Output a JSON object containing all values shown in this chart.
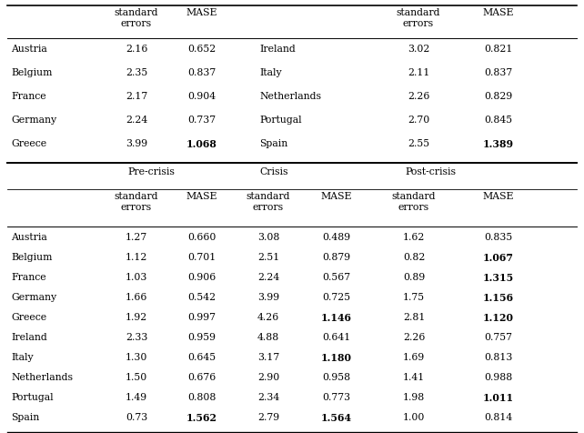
{
  "top_section": {
    "left": [
      {
        "country": "Austria",
        "se": "2.16",
        "mase": "0.652",
        "mase_bold": false
      },
      {
        "country": "Belgium",
        "se": "2.35",
        "mase": "0.837",
        "mase_bold": false
      },
      {
        "country": "France",
        "se": "2.17",
        "mase": "0.904",
        "mase_bold": false
      },
      {
        "country": "Germany",
        "se": "2.24",
        "mase": "0.737",
        "mase_bold": false
      },
      {
        "country": "Greece",
        "se": "3.99",
        "mase": "1.068",
        "mase_bold": true
      }
    ],
    "right": [
      {
        "country": "Ireland",
        "se": "3.02",
        "mase": "0.821",
        "mase_bold": false
      },
      {
        "country": "Italy",
        "se": "2.11",
        "mase": "0.837",
        "mase_bold": false
      },
      {
        "country": "Netherlands",
        "se": "2.26",
        "mase": "0.829",
        "mase_bold": false
      },
      {
        "country": "Portugal",
        "se": "2.70",
        "mase": "0.845",
        "mase_bold": false
      },
      {
        "country": "Spain",
        "se": "2.55",
        "mase": "1.389",
        "mase_bold": true
      }
    ]
  },
  "bottom_section": {
    "rows": [
      {
        "country": "Austria",
        "pre_se": "1.27",
        "pre_mase": "0.660",
        "pre_mase_bold": false,
        "cr_se": "3.08",
        "cr_mase": "0.489",
        "cr_mase_bold": false,
        "post_se": "1.62",
        "post_mase": "0.835",
        "post_mase_bold": false
      },
      {
        "country": "Belgium",
        "pre_se": "1.12",
        "pre_mase": "0.701",
        "pre_mase_bold": false,
        "cr_se": "2.51",
        "cr_mase": "0.879",
        "cr_mase_bold": false,
        "post_se": "0.82",
        "post_mase": "1.067",
        "post_mase_bold": true
      },
      {
        "country": "France",
        "pre_se": "1.03",
        "pre_mase": "0.906",
        "pre_mase_bold": false,
        "cr_se": "2.24",
        "cr_mase": "0.567",
        "cr_mase_bold": false,
        "post_se": "0.89",
        "post_mase": "1.315",
        "post_mase_bold": true
      },
      {
        "country": "Germany",
        "pre_se": "1.66",
        "pre_mase": "0.542",
        "pre_mase_bold": false,
        "cr_se": "3.99",
        "cr_mase": "0.725",
        "cr_mase_bold": false,
        "post_se": "1.75",
        "post_mase": "1.156",
        "post_mase_bold": true
      },
      {
        "country": "Greece",
        "pre_se": "1.92",
        "pre_mase": "0.997",
        "pre_mase_bold": false,
        "cr_se": "4.26",
        "cr_mase": "1.146",
        "cr_mase_bold": true,
        "post_se": "2.81",
        "post_mase": "1.120",
        "post_mase_bold": true
      },
      {
        "country": "Ireland",
        "pre_se": "2.33",
        "pre_mase": "0.959",
        "pre_mase_bold": false,
        "cr_se": "4.88",
        "cr_mase": "0.641",
        "cr_mase_bold": false,
        "post_se": "2.26",
        "post_mase": "0.757",
        "post_mase_bold": false
      },
      {
        "country": "Italy",
        "pre_se": "1.30",
        "pre_mase": "0.645",
        "pre_mase_bold": false,
        "cr_se": "3.17",
        "cr_mase": "1.180",
        "cr_mase_bold": true,
        "post_se": "1.69",
        "post_mase": "0.813",
        "post_mase_bold": false
      },
      {
        "country": "Netherlands",
        "pre_se": "1.50",
        "pre_mase": "0.676",
        "pre_mase_bold": false,
        "cr_se": "2.90",
        "cr_mase": "0.958",
        "cr_mase_bold": false,
        "post_se": "1.41",
        "post_mase": "0.988",
        "post_mase_bold": false
      },
      {
        "country": "Portugal",
        "pre_se": "1.49",
        "pre_mase": "0.808",
        "pre_mase_bold": false,
        "cr_se": "2.34",
        "cr_mase": "0.773",
        "cr_mase_bold": false,
        "post_se": "1.98",
        "post_mase": "1.011",
        "post_mase_bold": true
      },
      {
        "country": "Spain",
        "pre_se": "0.73",
        "pre_mase": "1.562",
        "pre_mase_bold": true,
        "cr_se": "2.79",
        "cr_mase": "1.564",
        "cr_mase_bold": true,
        "post_se": "1.00",
        "post_mase": "0.814",
        "post_mase_bold": false
      }
    ]
  },
  "fontsize": 7.8,
  "figsize": [
    6.42,
    4.76
  ],
  "dpi": 100
}
